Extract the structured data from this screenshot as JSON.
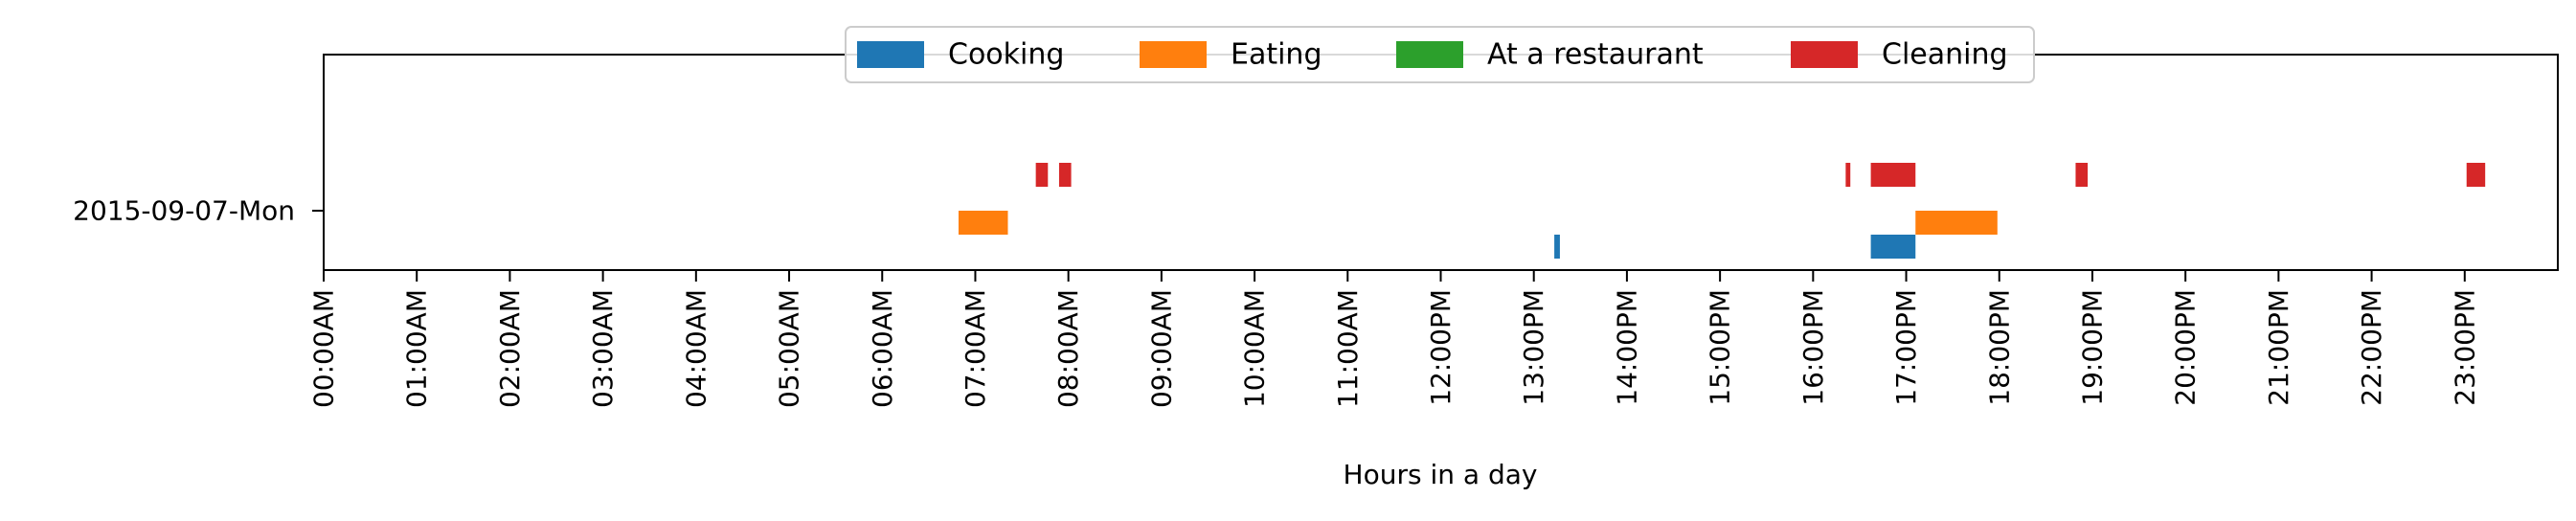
{
  "chart_data": {
    "type": "timeline",
    "title": "",
    "xlabel": "Hours in a day",
    "ylabel": "",
    "x_unit": "hours",
    "xlim": [
      0,
      24
    ],
    "x_ticks": [
      {
        "value": 0,
        "label": "00:00AM"
      },
      {
        "value": 1,
        "label": "01:00AM"
      },
      {
        "value": 2,
        "label": "02:00AM"
      },
      {
        "value": 3,
        "label": "03:00AM"
      },
      {
        "value": 4,
        "label": "04:00AM"
      },
      {
        "value": 5,
        "label": "05:00AM"
      },
      {
        "value": 6,
        "label": "06:00AM"
      },
      {
        "value": 7,
        "label": "07:00AM"
      },
      {
        "value": 8,
        "label": "08:00AM"
      },
      {
        "value": 9,
        "label": "09:00AM"
      },
      {
        "value": 10,
        "label": "10:00AM"
      },
      {
        "value": 11,
        "label": "11:00AM"
      },
      {
        "value": 12,
        "label": "12:00PM"
      },
      {
        "value": 13,
        "label": "13:00PM"
      },
      {
        "value": 14,
        "label": "14:00PM"
      },
      {
        "value": 15,
        "label": "15:00PM"
      },
      {
        "value": 16,
        "label": "16:00PM"
      },
      {
        "value": 17,
        "label": "17:00PM"
      },
      {
        "value": 18,
        "label": "18:00PM"
      },
      {
        "value": 19,
        "label": "19:00PM"
      },
      {
        "value": 20,
        "label": "20:00PM"
      },
      {
        "value": 21,
        "label": "21:00PM"
      },
      {
        "value": 22,
        "label": "22:00PM"
      },
      {
        "value": 23,
        "label": "23:00PM"
      }
    ],
    "categories": [
      "2015-09-07-Mon"
    ],
    "grid": false,
    "legend": {
      "position": "top-center",
      "columns": 4
    },
    "series": [
      {
        "name": "Cooking",
        "color": "#1f77b4",
        "lane": 0,
        "intervals": [
          [
            13.22,
            13.28
          ],
          [
            16.62,
            17.1
          ]
        ]
      },
      {
        "name": "Eating",
        "color": "#ff7f0e",
        "lane": 1,
        "intervals": [
          [
            6.82,
            7.35
          ],
          [
            17.1,
            17.98
          ]
        ]
      },
      {
        "name": "At a restaurant",
        "color": "#2ca02c",
        "lane": 2,
        "intervals": []
      },
      {
        "name": "Cleaning",
        "color": "#d62728",
        "lane": 3,
        "intervals": [
          [
            7.65,
            7.78
          ],
          [
            7.9,
            8.03
          ],
          [
            16.35,
            16.4
          ],
          [
            16.62,
            17.1
          ],
          [
            18.82,
            18.95
          ],
          [
            23.02,
            23.22
          ]
        ]
      }
    ]
  }
}
